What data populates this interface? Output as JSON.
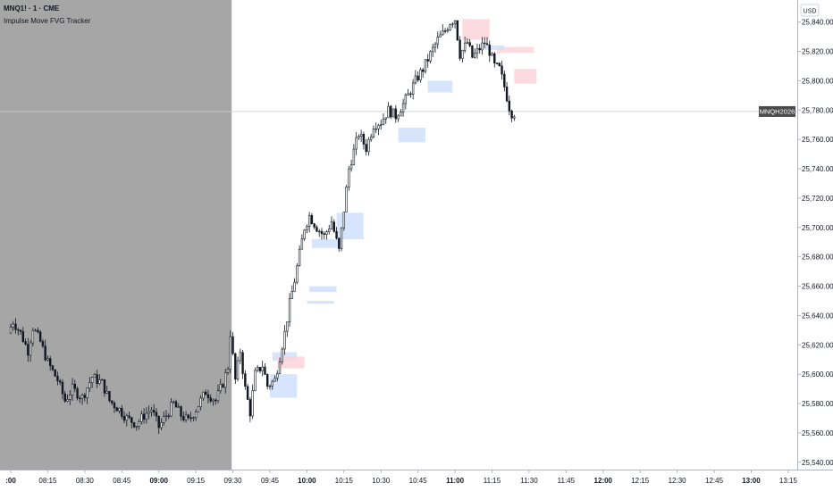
{
  "header": {
    "symbol_line": "MNQ1! · 1 · CME",
    "indicator_line": "Impulse Move FVG Tracker"
  },
  "price_axis": {
    "currency_label": "USD"
  },
  "crosshair": {
    "label": "MNQH2026",
    "price": 25779
  },
  "colors": {
    "session_shade": "#a6a6a6",
    "candle": "#131722",
    "bull_fvg": "#cfe0fb",
    "bear_fvg": "#fbd3da",
    "crosshair_label_bg": "#4a4a4a"
  },
  "chart_data": {
    "type": "candlestick",
    "title": "MNQ1! · 1 · CME",
    "subtitle": "Impulse Move FVG Tracker",
    "ylim": [
      25535,
      25855
    ],
    "yticks": [
      25540,
      25560,
      25580,
      25600,
      25620,
      25640,
      25660,
      25680,
      25700,
      25720,
      25740,
      25760,
      25780,
      25800,
      25820,
      25840
    ],
    "xticks": [
      {
        "label": ":00",
        "t": 480,
        "bold": true
      },
      {
        "label": "08:15",
        "t": 495,
        "bold": false
      },
      {
        "label": "08:30",
        "t": 510,
        "bold": false
      },
      {
        "label": "08:45",
        "t": 525,
        "bold": false
      },
      {
        "label": "09:00",
        "t": 540,
        "bold": true
      },
      {
        "label": "09:15",
        "t": 555,
        "bold": false
      },
      {
        "label": "09:30",
        "t": 570,
        "bold": false
      },
      {
        "label": "09:45",
        "t": 585,
        "bold": false
      },
      {
        "label": "10:00",
        "t": 600,
        "bold": true
      },
      {
        "label": "10:15",
        "t": 615,
        "bold": false
      },
      {
        "label": "10:30",
        "t": 630,
        "bold": false
      },
      {
        "label": "10:45",
        "t": 645,
        "bold": false
      },
      {
        "label": "11:00",
        "t": 660,
        "bold": true
      },
      {
        "label": "11:15",
        "t": 675,
        "bold": false
      },
      {
        "label": "11:30",
        "t": 690,
        "bold": false
      },
      {
        "label": "11:45",
        "t": 705,
        "bold": false
      },
      {
        "label": "12:00",
        "t": 720,
        "bold": true
      },
      {
        "label": "12:15",
        "t": 735,
        "bold": false
      },
      {
        "label": "12:30",
        "t": 750,
        "bold": false
      },
      {
        "label": "12:45",
        "t": 765,
        "bold": false
      },
      {
        "label": "13:00",
        "t": 780,
        "bold": true
      },
      {
        "label": "13:15",
        "t": 795,
        "bold": false
      }
    ],
    "pre_session_end": 569.5,
    "price_path": [
      [
        480,
        25628
      ],
      [
        482,
        25636
      ],
      [
        485,
        25628
      ],
      [
        488,
        25616
      ],
      [
        490,
        25632
      ],
      [
        493,
        25622
      ],
      [
        496,
        25608
      ],
      [
        500,
        25596
      ],
      [
        503,
        25582
      ],
      [
        506,
        25590
      ],
      [
        510,
        25584
      ],
      [
        514,
        25598
      ],
      [
        518,
        25594
      ],
      [
        521,
        25582
      ],
      [
        525,
        25576
      ],
      [
        528,
        25570
      ],
      [
        532,
        25566
      ],
      [
        535,
        25572
      ],
      [
        538,
        25576
      ],
      [
        541,
        25564
      ],
      [
        544,
        25572
      ],
      [
        547,
        25580
      ],
      [
        550,
        25572
      ],
      [
        553,
        25568
      ],
      [
        556,
        25576
      ],
      [
        560,
        25588
      ],
      [
        564,
        25582
      ],
      [
        567,
        25594
      ],
      [
        569,
        25605
      ],
      [
        570,
        25628
      ],
      [
        572,
        25596
      ],
      [
        574,
        25616
      ],
      [
        576,
        25590
      ],
      [
        578,
        25574
      ],
      [
        580,
        25600
      ],
      [
        583,
        25606
      ],
      [
        585,
        25592
      ],
      [
        588,
        25596
      ],
      [
        590,
        25612
      ],
      [
        592,
        25628
      ],
      [
        594,
        25648
      ],
      [
        596,
        25664
      ],
      [
        598,
        25682
      ],
      [
        600,
        25700
      ],
      [
        602,
        25708
      ],
      [
        605,
        25700
      ],
      [
        608,
        25694
      ],
      [
        611,
        25704
      ],
      [
        614,
        25684
      ],
      [
        616,
        25712
      ],
      [
        618,
        25740
      ],
      [
        620,
        25752
      ],
      [
        622,
        25764
      ],
      [
        625,
        25754
      ],
      [
        628,
        25770
      ],
      [
        631,
        25772
      ],
      [
        634,
        25780
      ],
      [
        637,
        25776
      ],
      [
        640,
        25784
      ],
      [
        642,
        25790
      ],
      [
        645,
        25800
      ],
      [
        648,
        25808
      ],
      [
        651,
        25818
      ],
      [
        654,
        25828
      ],
      [
        657,
        25834
      ],
      [
        659,
        25840
      ],
      [
        661,
        25842
      ],
      [
        663,
        25818
      ],
      [
        666,
        25826
      ],
      [
        668,
        25816
      ],
      [
        671,
        25822
      ],
      [
        673,
        25826
      ],
      [
        675,
        25820
      ],
      [
        677,
        25810
      ],
      [
        679,
        25808
      ],
      [
        681,
        25796
      ],
      [
        683,
        25782
      ],
      [
        684,
        25778
      ]
    ],
    "fvg_zones": [
      {
        "type": "bearish",
        "t0": 663,
        "t1": 674,
        "low": 25828,
        "high": 25842
      },
      {
        "type": "bearish",
        "t0": 677,
        "t1": 692,
        "low": 25819,
        "high": 25823
      },
      {
        "type": "bullish",
        "t0": 672,
        "t1": 680,
        "low": 25821,
        "high": 25824
      },
      {
        "type": "bearish",
        "t0": 684,
        "t1": 693,
        "low": 25798,
        "high": 25808
      },
      {
        "type": "bullish",
        "t0": 649,
        "t1": 659,
        "low": 25792,
        "high": 25800
      },
      {
        "type": "bullish",
        "t0": 637,
        "t1": 648,
        "low": 25758,
        "high": 25768
      },
      {
        "type": "bullish",
        "t0": 612,
        "t1": 623,
        "low": 25692,
        "high": 25710
      },
      {
        "type": "bullish",
        "t0": 602,
        "t1": 613,
        "low": 25686,
        "high": 25692
      },
      {
        "type": "bullish",
        "t0": 601,
        "t1": 612,
        "low": 25656,
        "high": 25660
      },
      {
        "type": "bullish",
        "t0": 600,
        "t1": 611,
        "low": 25648,
        "high": 25650
      },
      {
        "type": "bullish",
        "t0": 586,
        "t1": 596,
        "low": 25609,
        "high": 25615
      },
      {
        "type": "bearish",
        "t0": 588,
        "t1": 599,
        "low": 25604,
        "high": 25612
      },
      {
        "type": "bullish",
        "t0": 585,
        "t1": 596,
        "low": 25584,
        "high": 25600
      }
    ]
  }
}
